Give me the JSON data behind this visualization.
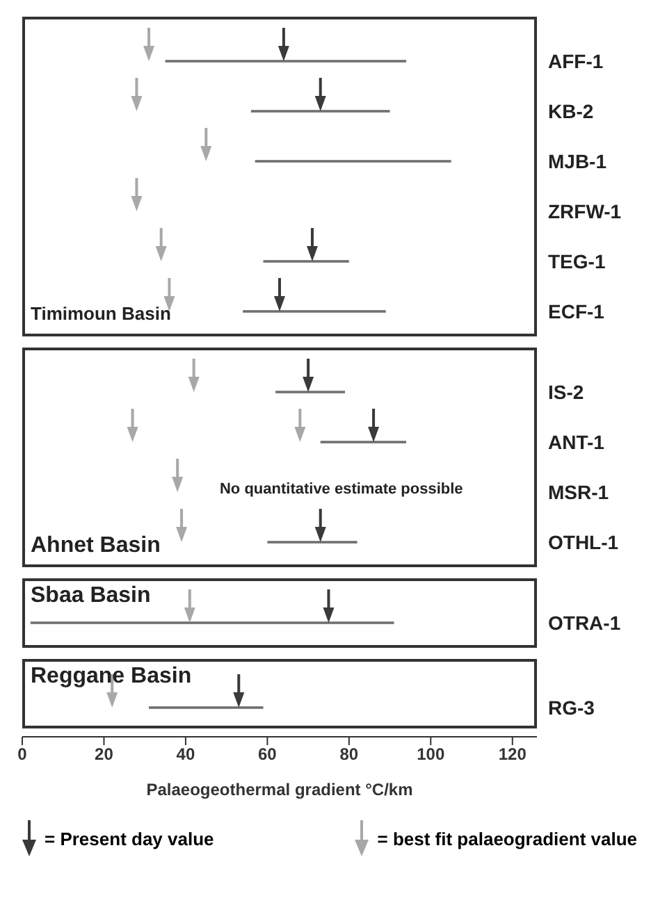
{
  "chart_data": [
    {
      "type": "bar",
      "orientation": "horizontal",
      "categories": [
        "AFF-1",
        "KB-2",
        "MJB-1",
        "ZRFW-1",
        "TEG-1",
        "ECF-1"
      ],
      "xlim": [
        0,
        126
      ],
      "xticks": [
        0,
        20,
        40,
        60,
        80,
        100,
        120
      ],
      "tick_labels": "y",
      "marker": "triangle",
      "annotations": [
        "Timimoun Basin"
      ],
      "series": [
        {
          "type": "bar",
          "color": "#707070",
          "base": [
            35,
            56,
            57,
            null,
            59,
            54
          ],
          "values": [
            59,
            34,
            48,
            null,
            21,
            35
          ]
        },
        {
          "type": "scatter",
          "color": "#3a3a3a",
          "values": [
            64,
            73,
            null,
            null,
            71,
            63
          ]
        },
        {
          "type": "scatter",
          "color": "#a8a8a8",
          "values": [
            31,
            28,
            45,
            28,
            34,
            36
          ]
        }
      ]
    },
    {
      "type": "bar",
      "orientation": "horizontal",
      "categories": [
        "IS-2",
        "ANT-1",
        "MSR-1",
        "OTHL-1"
      ],
      "xlim": [
        0,
        126
      ],
      "xticks": [
        0,
        20,
        40,
        60,
        80,
        100,
        120
      ],
      "tick_labels": "y",
      "marker": "triangle",
      "annotations": [
        "Ahnet Basin",
        "No quantitative estimate possible"
      ],
      "series": [
        {
          "type": "bar",
          "color": "#707070",
          "base": [
            62,
            73,
            null,
            60
          ],
          "values": [
            17,
            21,
            null,
            22
          ]
        },
        {
          "type": "scatter",
          "color": "#3a3a3a",
          "values": [
            70,
            86,
            null,
            73
          ]
        },
        {
          "type": "scatter",
          "color": "#a8a8a8",
          "values": [
            42,
            27,
            38,
            39
          ]
        },
        {
          "type": "scatter",
          "color": "#a8a8a8",
          "values": [
            null,
            68,
            null,
            null
          ]
        }
      ]
    },
    {
      "type": "bar",
      "orientation": "horizontal",
      "categories": [
        "OTRA-1"
      ],
      "xlim": [
        0,
        126
      ],
      "xticks": [
        0,
        20,
        40,
        60,
        80,
        100,
        120
      ],
      "tick_labels": "y",
      "marker": "triangle",
      "annotations": [
        "Sbaa Basin"
      ],
      "series": [
        {
          "type": "bar",
          "color": "#707070",
          "base": [
            2
          ],
          "values": [
            89
          ]
        },
        {
          "type": "scatter",
          "color": "#3a3a3a",
          "values": [
            75
          ]
        },
        {
          "type": "scatter",
          "color": "#a8a8a8",
          "values": [
            41
          ]
        }
      ]
    },
    {
      "type": "bar",
      "orientation": "horizontal",
      "categories": [
        "RG-3"
      ],
      "xlim": [
        0,
        126
      ],
      "xticks": [
        0,
        20,
        40,
        60,
        80,
        100,
        120
      ],
      "xlabel": "Palaeogeothermal gradient °C/km",
      "marker": "triangle",
      "legend": "bottom",
      "annotations": [
        "Reggane Basin"
      ],
      "series": [
        {
          "type": "bar",
          "color": "#707070",
          "base": [
            31
          ],
          "values": [
            28
          ]
        },
        {
          "type": "scatter",
          "name": "= Present day value",
          "color": "#3a3a3a",
          "values": [
            53
          ]
        },
        {
          "type": "scatter",
          "name": "= best fit palaeogradient value",
          "color": "#a8a8a8",
          "values": [
            22
          ]
        }
      ]
    }
  ]
}
